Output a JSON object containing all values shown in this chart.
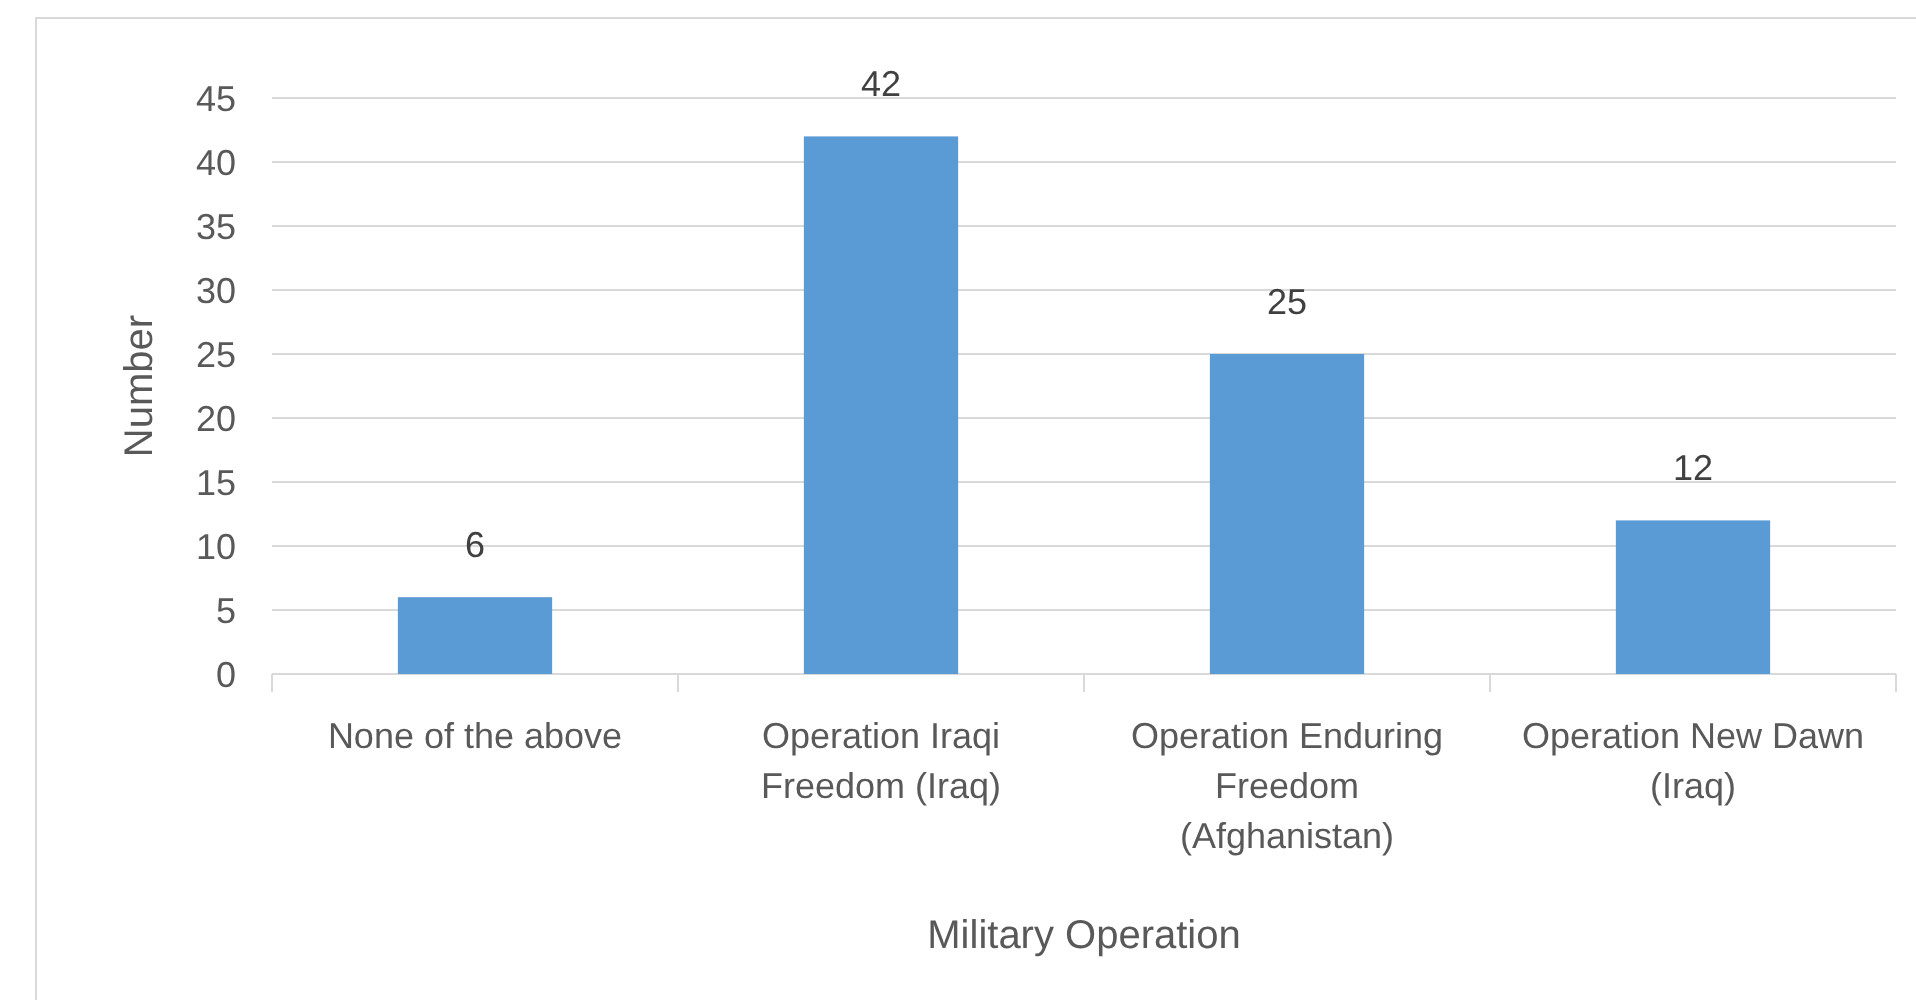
{
  "chart_data": {
    "type": "bar",
    "xlabel": "Military Operation",
    "ylabel": "Number",
    "categories": [
      "None of the above",
      "Operation Iraqi Freedom (Iraq)",
      "Operation Enduring Freedom (Afghanistan)",
      "Operation New Dawn (Iraq)"
    ],
    "values": [
      6,
      42,
      25,
      12
    ],
    "color": "#5b9bd5",
    "ylim": [
      0,
      45
    ],
    "yticks": [
      0,
      5,
      10,
      15,
      20,
      25,
      30,
      35,
      40,
      45
    ],
    "grid": "y",
    "data_labels": true
  }
}
